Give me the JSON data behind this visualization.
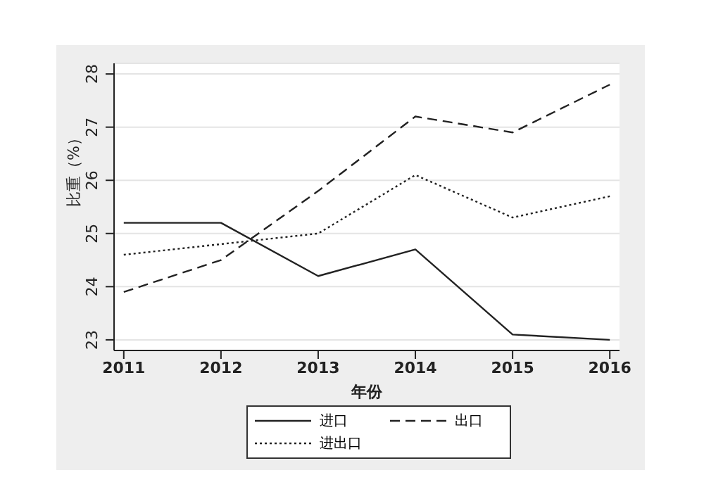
{
  "chart_data": {
    "type": "line",
    "xlabel": "年份",
    "ylabel": "比重（%）",
    "x": [
      2011,
      2012,
      2013,
      2014,
      2015,
      2016
    ],
    "xlim": [
      2010.9,
      2016.1
    ],
    "xticks": [
      2011,
      2012,
      2013,
      2014,
      2015,
      2016
    ],
    "ylim": [
      22.8,
      28.2
    ],
    "yticks": [
      23,
      24,
      25,
      26,
      27,
      28
    ],
    "grid": "y",
    "legend": "bottom",
    "marker": "none",
    "series": [
      {
        "name": "进口",
        "color": "#222222",
        "line_style": "solid",
        "values": [
          25.2,
          25.2,
          24.2,
          24.7,
          23.1,
          23.0
        ]
      },
      {
        "name": "出口",
        "color": "#222222",
        "line_style": "dashed",
        "values": [
          23.9,
          24.5,
          25.8,
          27.2,
          26.9,
          27.8
        ]
      },
      {
        "name": "进出口",
        "color": "#222222",
        "line_style": "dotted",
        "values": [
          24.6,
          24.8,
          25.0,
          26.1,
          25.3,
          25.7
        ]
      }
    ]
  }
}
